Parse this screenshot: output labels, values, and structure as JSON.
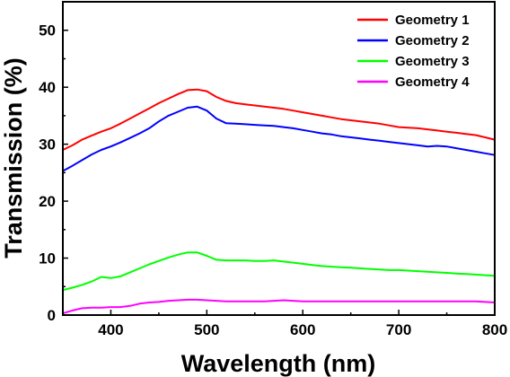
{
  "chart_data": {
    "type": "line",
    "title": "",
    "xlabel": "Wavelength (nm)",
    "ylabel": "Transmission (%)",
    "xlim": [
      350,
      800
    ],
    "ylim": [
      0,
      55
    ],
    "xticks": [
      400,
      500,
      600,
      700,
      800
    ],
    "yticks": [
      0,
      10,
      20,
      30,
      40,
      50
    ],
    "grid": false,
    "legend_position": "top-right",
    "series": [
      {
        "name": "Geometry 1",
        "color": "#ff0000",
        "x": [
          350,
          360,
          370,
          380,
          390,
          400,
          410,
          420,
          430,
          440,
          450,
          460,
          470,
          480,
          490,
          500,
          510,
          520,
          530,
          540,
          550,
          560,
          570,
          580,
          590,
          600,
          610,
          620,
          630,
          640,
          650,
          660,
          670,
          680,
          690,
          700,
          710,
          720,
          730,
          740,
          750,
          760,
          770,
          780,
          790,
          800
        ],
        "y": [
          29.0,
          29.8,
          30.8,
          31.5,
          32.2,
          32.8,
          33.6,
          34.5,
          35.4,
          36.3,
          37.2,
          38.0,
          38.8,
          39.5,
          39.6,
          39.3,
          38.3,
          37.6,
          37.2,
          37.0,
          36.8,
          36.6,
          36.4,
          36.2,
          35.9,
          35.6,
          35.3,
          35.0,
          34.7,
          34.4,
          34.2,
          34.0,
          33.8,
          33.6,
          33.3,
          33.0,
          32.9,
          32.8,
          32.6,
          32.4,
          32.2,
          32.0,
          31.8,
          31.6,
          31.2,
          30.8
        ]
      },
      {
        "name": "Geometry 2",
        "color": "#0000ff",
        "x": [
          350,
          360,
          370,
          380,
          390,
          400,
          410,
          420,
          430,
          440,
          450,
          460,
          470,
          480,
          490,
          500,
          510,
          520,
          530,
          540,
          550,
          560,
          570,
          580,
          590,
          600,
          610,
          620,
          630,
          640,
          650,
          660,
          670,
          680,
          690,
          700,
          710,
          720,
          730,
          740,
          750,
          760,
          770,
          780,
          790,
          800
        ],
        "y": [
          25.3,
          26.2,
          27.2,
          28.2,
          29.0,
          29.6,
          30.3,
          31.1,
          31.9,
          32.8,
          34.0,
          35.0,
          35.7,
          36.4,
          36.6,
          35.9,
          34.5,
          33.7,
          33.6,
          33.5,
          33.4,
          33.3,
          33.2,
          33.0,
          32.8,
          32.5,
          32.2,
          31.9,
          31.7,
          31.4,
          31.2,
          31.0,
          30.8,
          30.6,
          30.4,
          30.2,
          30.0,
          29.8,
          29.6,
          29.7,
          29.6,
          29.3,
          29.0,
          28.7,
          28.4,
          28.1
        ]
      },
      {
        "name": "Geometry 3",
        "color": "#00ff00",
        "x": [
          350,
          360,
          370,
          380,
          390,
          400,
          410,
          420,
          430,
          440,
          450,
          460,
          470,
          480,
          490,
          500,
          510,
          520,
          530,
          540,
          550,
          560,
          570,
          580,
          590,
          600,
          610,
          620,
          630,
          640,
          650,
          660,
          670,
          680,
          690,
          700,
          710,
          720,
          730,
          740,
          750,
          760,
          770,
          780,
          790,
          800
        ],
        "y": [
          4.4,
          4.8,
          5.3,
          5.9,
          6.7,
          6.5,
          6.8,
          7.5,
          8.2,
          8.9,
          9.5,
          10.1,
          10.6,
          11.0,
          11.0,
          10.4,
          9.7,
          9.6,
          9.6,
          9.6,
          9.5,
          9.5,
          9.6,
          9.4,
          9.2,
          9.0,
          8.8,
          8.6,
          8.5,
          8.4,
          8.3,
          8.2,
          8.1,
          8.0,
          7.9,
          7.9,
          7.8,
          7.7,
          7.6,
          7.5,
          7.4,
          7.3,
          7.2,
          7.1,
          7.0,
          6.9
        ]
      },
      {
        "name": "Geometry 4",
        "color": "#ff00ff",
        "x": [
          350,
          360,
          370,
          380,
          390,
          400,
          410,
          420,
          430,
          440,
          450,
          460,
          470,
          480,
          490,
          500,
          510,
          520,
          530,
          540,
          550,
          560,
          570,
          580,
          590,
          600,
          610,
          620,
          630,
          640,
          650,
          660,
          670,
          680,
          690,
          700,
          710,
          720,
          730,
          740,
          750,
          760,
          770,
          780,
          790,
          800
        ],
        "y": [
          0.3,
          0.8,
          1.2,
          1.3,
          1.3,
          1.4,
          1.4,
          1.6,
          2.0,
          2.2,
          2.3,
          2.5,
          2.6,
          2.7,
          2.7,
          2.6,
          2.5,
          2.4,
          2.4,
          2.4,
          2.4,
          2.4,
          2.5,
          2.6,
          2.5,
          2.4,
          2.4,
          2.4,
          2.4,
          2.4,
          2.4,
          2.4,
          2.4,
          2.4,
          2.4,
          2.4,
          2.4,
          2.4,
          2.4,
          2.4,
          2.4,
          2.4,
          2.4,
          2.4,
          2.3,
          2.2
        ]
      }
    ]
  }
}
